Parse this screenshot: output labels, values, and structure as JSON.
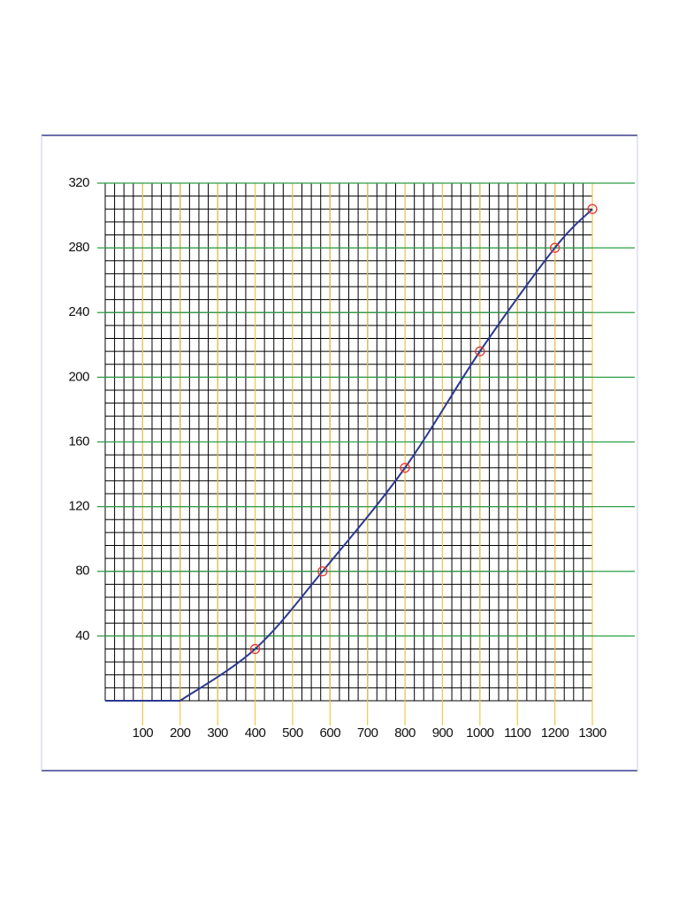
{
  "chart_data": {
    "type": "line",
    "xlim": [
      0,
      1300
    ],
    "xticks": [
      100,
      200,
      300,
      400,
      500,
      600,
      700,
      800,
      900,
      1000,
      1100,
      1200,
      1300
    ],
    "ylim": [
      0,
      320
    ],
    "yticks": [
      40,
      80,
      120,
      160,
      200,
      240,
      280,
      320
    ],
    "x_minor_step": 25,
    "y_minor_step": 8,
    "grid": true,
    "series": [
      {
        "color": "#2b3990",
        "marker": "none",
        "x": [
          0,
          200,
          400,
          580,
          800,
          1000,
          1200,
          1300
        ],
        "values": [
          0,
          0,
          32,
          80,
          144,
          216,
          280,
          304
        ]
      },
      {
        "color": "#e8322f",
        "marker": "circle",
        "x": [
          400,
          580,
          800,
          1000,
          1200,
          1300
        ],
        "values": [
          32,
          80,
          144,
          216,
          280,
          304
        ]
      }
    ]
  }
}
